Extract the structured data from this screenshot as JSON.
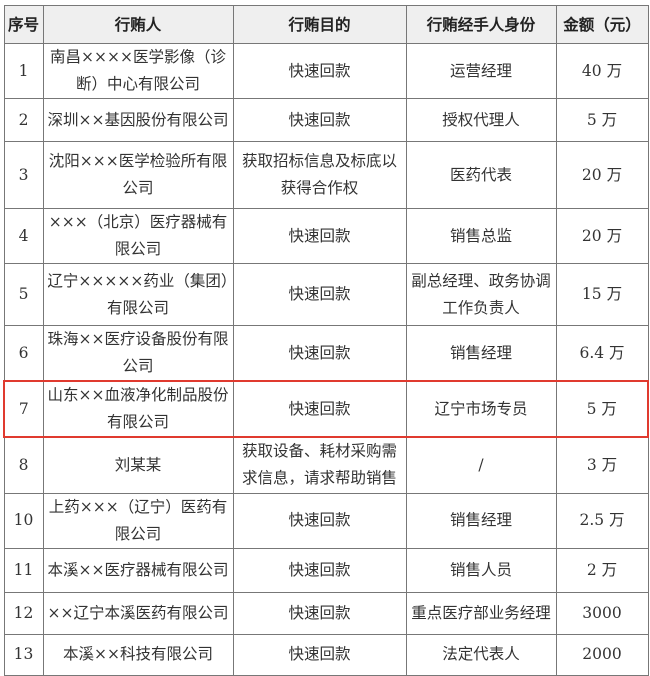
{
  "table": {
    "headers": [
      "序号",
      "行贿人",
      "行贿目的",
      "行贿经手人身份",
      "金额（元）"
    ],
    "rows": [
      {
        "no": "1",
        "briber": "南昌××××医学影像（诊断）中心有限公司",
        "purpose": "快速回款",
        "handler": "运营经理",
        "amount": "40 万"
      },
      {
        "no": "2",
        "briber": "深圳××基因股份有限公司",
        "purpose": "快速回款",
        "handler": "授权代理人",
        "amount": "5 万"
      },
      {
        "no": "3",
        "briber": "沈阳×××医学检验所有限公司",
        "purpose": "获取招标信息及标底以获得合作权",
        "handler": "医药代表",
        "amount": "20 万"
      },
      {
        "no": "4",
        "briber": "×××（北京）医疗器械有限公司",
        "purpose": "快速回款",
        "handler": "销售总监",
        "amount": "20 万"
      },
      {
        "no": "5",
        "briber": "辽宁×××××药业（集团）有限公司",
        "purpose": "快速回款",
        "handler": "副总经理、政务协调工作负责人",
        "amount": "15 万"
      },
      {
        "no": "6",
        "briber": "珠海××医疗设备股份有限公司",
        "purpose": "快速回款",
        "handler": "销售经理",
        "amount": "6.4 万"
      },
      {
        "no": "7",
        "briber": "山东××血液净化制品股份有限公司",
        "purpose": "快速回款",
        "handler": "辽宁市场专员",
        "amount": "5 万",
        "highlighted": true
      },
      {
        "no": "8",
        "briber": "刘某某",
        "purpose": "获取设备、耗材采购需求信息，请求帮助销售",
        "handler": "/",
        "amount": "3 万"
      },
      {
        "no": "10",
        "briber": "上药×××（辽宁）医药有限公司",
        "purpose": "快速回款",
        "handler": "销售经理",
        "amount": "2.5 万"
      },
      {
        "no": "11",
        "briber": "本溪××医疗器械有限公司",
        "purpose": "快速回款",
        "handler": "销售人员",
        "amount": "2 万"
      },
      {
        "no": "12",
        "briber": "××辽宁本溪医药有限公司",
        "purpose": "快速回款",
        "handler": "重点医疗部业务经理",
        "amount": "3000"
      },
      {
        "no": "13",
        "briber": "本溪××科技有限公司",
        "purpose": "快速回款",
        "handler": "法定代表人",
        "amount": "2000"
      }
    ]
  },
  "colors": {
    "highlight": "#e03a2f",
    "header_bg": "#efefef"
  }
}
